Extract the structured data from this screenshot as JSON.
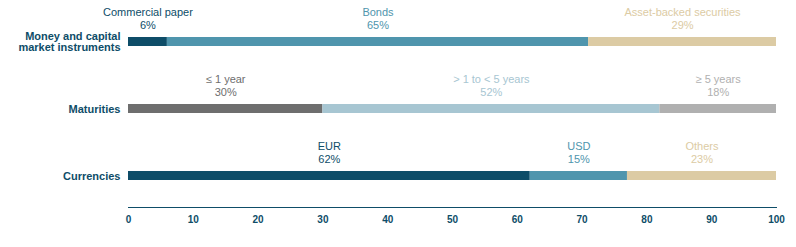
{
  "chart_data": {
    "type": "bar",
    "orientation": "horizontal",
    "stacked": true,
    "data_labels": true,
    "categories": [
      "Money and capital market instruments",
      "Maturities",
      "Currencies"
    ],
    "segments": [
      [
        {
          "name": "Commercial paper",
          "value": 6,
          "value_label": "6%",
          "color": "#0e4d68"
        },
        {
          "name": "Bonds",
          "value": 65,
          "value_label": "65%",
          "color": "#4f95ad"
        },
        {
          "name": "Asset-backed securities",
          "value": 29,
          "value_label": "29%",
          "color": "#dccba4"
        }
      ],
      [
        {
          "name": "≤ 1 year",
          "value": 30,
          "value_label": "30%",
          "color": "#6e6e6e"
        },
        {
          "name": "> 1 to < 5 years",
          "value": 52,
          "value_label": "52%",
          "color": "#a7c6d2"
        },
        {
          "name": "≥ 5 years",
          "value": 18,
          "value_label": "18%",
          "color": "#b0b0b0"
        }
      ],
      [
        {
          "name": "EUR",
          "value": 62,
          "value_label": "62%",
          "color": "#0e4d68"
        },
        {
          "name": "USD",
          "value": 15,
          "value_label": "15%",
          "color": "#4f95ad"
        },
        {
          "name": "Others",
          "value": 23,
          "value_label": "23%",
          "color": "#dccba4"
        }
      ]
    ],
    "xlim": [
      0,
      100
    ],
    "xticks": [
      0,
      10,
      20,
      30,
      40,
      50,
      60,
      70,
      80,
      90,
      100
    ]
  }
}
